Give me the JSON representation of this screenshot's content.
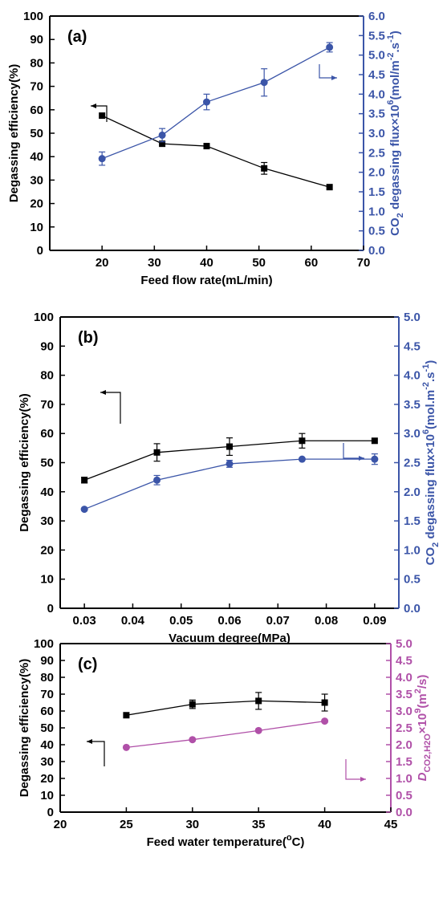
{
  "chart_data": [
    {
      "type": "line",
      "panel_label": "(a)",
      "xlabel": "Feed flow rate(mL/min)",
      "xlim": [
        10,
        70
      ],
      "xticks": [
        "20",
        "30",
        "40",
        "50",
        "60",
        "70"
      ],
      "ylabel": "Degassing efficiency(%)",
      "ylim": [
        0,
        100
      ],
      "yticks": [
        "0",
        "10",
        "20",
        "30",
        "40",
        "50",
        "60",
        "70",
        "80",
        "90",
        "100"
      ],
      "y2label": {
        "pre": "CO",
        "sub": "2",
        "mid": " degassing flux×10",
        "sup": "6",
        "post": "(mol/m",
        "sup2": "-2",
        "post2": ".s",
        "sup3": "-1",
        "end": ")"
      },
      "y2lim": [
        0,
        6
      ],
      "y2ticks": [
        "0.0",
        "0.5",
        "1.0",
        "1.5",
        "2.0",
        "2.5",
        "3.0",
        "3.5",
        "4.0",
        "4.5",
        "5.0",
        "5.5",
        "6.0"
      ],
      "series": [
        {
          "axis": "left",
          "color": "#000000",
          "marker": "square",
          "x": [
            20,
            31.5,
            40,
            51,
            63.5
          ],
          "y": [
            57.5,
            45.5,
            44.5,
            35,
            27
          ],
          "err": [
            0,
            0,
            0,
            2.5,
            0
          ]
        },
        {
          "axis": "right",
          "color": "#3b55a8",
          "marker": "circle",
          "x": [
            20,
            31.5,
            40,
            51,
            63.5
          ],
          "y": [
            2.35,
            2.95,
            3.8,
            4.3,
            5.2
          ],
          "err": [
            0.17,
            0.17,
            0.2,
            0.35,
            0.12
          ]
        }
      ]
    },
    {
      "type": "line",
      "panel_label": "(b)",
      "xlabel": "Vacuum degree(MPa)",
      "xlim": [
        0.025,
        0.095
      ],
      "xticks": [
        "0.03",
        "0.04",
        "0.05",
        "0.06",
        "0.07",
        "0.08",
        "0.09"
      ],
      "ylabel": "Degassing efficiency(%)",
      "ylim": [
        0,
        100
      ],
      "yticks": [
        "0",
        "10",
        "20",
        "30",
        "40",
        "50",
        "60",
        "70",
        "80",
        "90",
        "100"
      ],
      "y2label": {
        "pre": "CO",
        "sub": "2",
        "mid": " degassing flux×10",
        "sup": "6",
        "post": "(mol.m",
        "sup2": "-2",
        "post2": ".s",
        "sup3": "-1",
        "end": ")"
      },
      "y2lim": [
        0,
        5
      ],
      "y2ticks": [
        "0.0",
        "0.5",
        "1.0",
        "1.5",
        "2.0",
        "2.5",
        "3.0",
        "3.5",
        "4.0",
        "4.5",
        "5.0"
      ],
      "series": [
        {
          "axis": "left",
          "color": "#000000",
          "marker": "square",
          "x": [
            0.03,
            0.045,
            0.06,
            0.075,
            0.09
          ],
          "y": [
            44,
            53.5,
            55.5,
            57.5,
            57.5
          ],
          "err": [
            1,
            3,
            3,
            2.5,
            0
          ]
        },
        {
          "axis": "right",
          "color": "#3b55a8",
          "marker": "circle",
          "x": [
            0.03,
            0.045,
            0.06,
            0.075,
            0.09
          ],
          "y": [
            1.7,
            2.2,
            2.48,
            2.56,
            2.56
          ],
          "err": [
            0,
            0.08,
            0.06,
            0,
            0.09
          ]
        }
      ]
    },
    {
      "type": "line",
      "panel_label": "(c)",
      "xlabel": "Feed water temperature(",
      "xlabel_sup": "o",
      "xlabel_end": "C)",
      "xlim": [
        20,
        45
      ],
      "xticks": [
        "20",
        "25",
        "30",
        "35",
        "40",
        "45"
      ],
      "ylabel": "Degassing efficiency(%)",
      "ylim": [
        0,
        100
      ],
      "yticks": [
        "0",
        "10",
        "20",
        "30",
        "40",
        "50",
        "60",
        "70",
        "80",
        "90",
        "100"
      ],
      "y2label": {
        "pre": "D",
        "sub": "CO2,H2O",
        "mid": "×10",
        "sup": "9",
        "post": "(m",
        "sup2": "2",
        "post2": "/s)",
        "sup3": "",
        "end": ""
      },
      "y2lim": [
        0,
        5
      ],
      "y2ticks": [
        "0.0",
        "0.5",
        "1.0",
        "1.5",
        "2.0",
        "2.5",
        "3.0",
        "3.5",
        "4.0",
        "4.5",
        "5.0"
      ],
      "series": [
        {
          "axis": "left",
          "color": "#000000",
          "marker": "square",
          "x": [
            25,
            30,
            35,
            40
          ],
          "y": [
            57.5,
            64,
            66,
            65
          ],
          "err": [
            0,
            2.5,
            5,
            5
          ]
        },
        {
          "axis": "right",
          "color": "#b050a8",
          "marker": "circle",
          "x": [
            25,
            30,
            35,
            40
          ],
          "y": [
            1.92,
            2.15,
            2.42,
            2.7
          ],
          "err": [
            0,
            0,
            0,
            0
          ]
        }
      ]
    }
  ]
}
